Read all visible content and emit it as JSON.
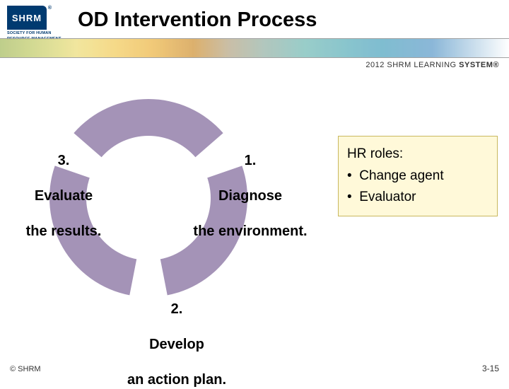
{
  "header": {
    "logo_text": "SHRM",
    "logo_subline1": "SOCIETY FOR HUMAN",
    "logo_subline2": "RESOURCE MANAGEMENT",
    "title": "OD Intervention Process",
    "system_year": "2012",
    "system_brand": "SHRM",
    "system_learning": "LEARNING",
    "system_system": "SYSTEM®"
  },
  "cycle": {
    "arc_color": "#a493b7",
    "arc_outer_radius": 140,
    "arc_inner_radius": 88,
    "gap_degrees": 22,
    "steps": [
      {
        "number": "1.",
        "line1": "Diagnose",
        "line2": "the environment."
      },
      {
        "number": "2.",
        "line1": "Develop",
        "line2": "an action plan."
      },
      {
        "number": "3.",
        "line1": "Evaluate",
        "line2": "the results."
      }
    ]
  },
  "hr_box": {
    "title": "HR roles:",
    "bullets": [
      "Change agent",
      "Evaluator"
    ],
    "bg_color": "#fff9d9",
    "border_color": "#c9b85e"
  },
  "footer": {
    "left": "© SHRM",
    "right": "3-15"
  }
}
